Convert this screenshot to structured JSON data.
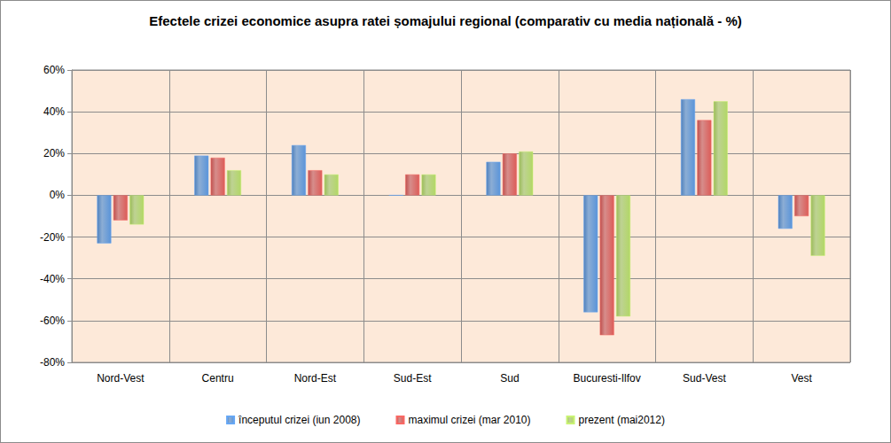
{
  "chart_data": {
    "type": "bar",
    "title": "Efectele crizei economice asupra ratei șomajului regional (comparativ cu media națională - %)",
    "categories": [
      "Nord-Vest",
      "Centru",
      "Nord-Est",
      "Sud-Est",
      "Sud",
      "Bucuresti-Ilfov",
      "Sud-Vest",
      "Vest"
    ],
    "series": [
      {
        "name": "începutul crizei (iun 2008)",
        "color": "#4f81bd",
        "values": [
          -23,
          19,
          24,
          0,
          16,
          -56,
          46,
          -16
        ]
      },
      {
        "name": "maximul crizei (mar 2010)",
        "color": "#c0504d",
        "values": [
          -12,
          18,
          12,
          10,
          20,
          -67,
          36,
          -10
        ]
      },
      {
        "name": "prezent (mai2012)",
        "color": "#9bbb59",
        "values": [
          -14,
          12,
          10,
          10,
          21,
          -58,
          45,
          -29
        ]
      }
    ],
    "ylim": [
      -80,
      60
    ],
    "yticks": [
      {
        "value": -80,
        "label": "-80%"
      },
      {
        "value": -60,
        "label": "-60%"
      },
      {
        "value": -40,
        "label": "-40%"
      },
      {
        "value": -20,
        "label": "-20%"
      },
      {
        "value": 0,
        "label": "0%"
      },
      {
        "value": 20,
        "label": "20%"
      },
      {
        "value": 40,
        "label": "40%"
      },
      {
        "value": 60,
        "label": "60%"
      }
    ],
    "grid": true,
    "legend": "bottom"
  }
}
